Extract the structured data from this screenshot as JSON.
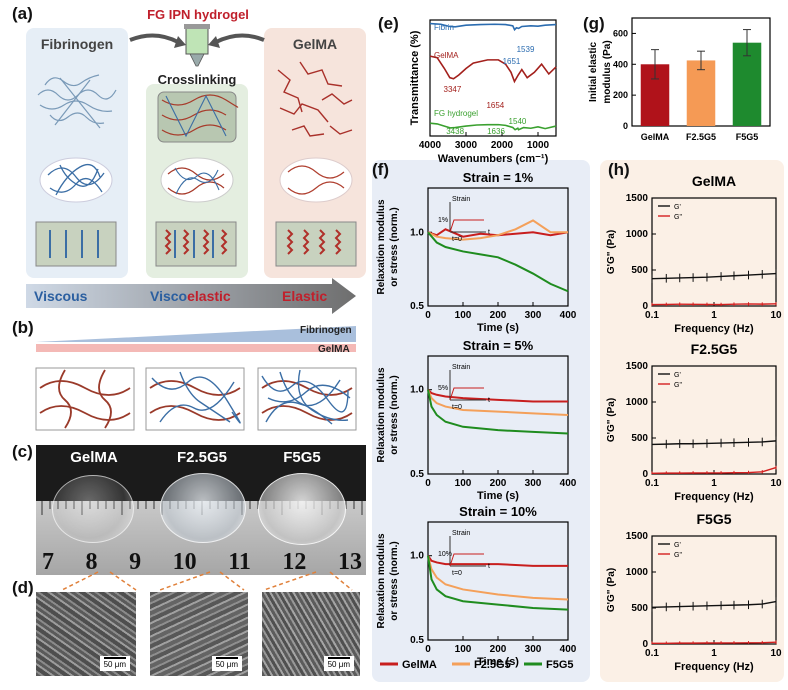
{
  "panels": {
    "a": "(a)",
    "b": "(b)",
    "c": "(c)",
    "d": "(d)",
    "e": "(e)",
    "f": "(f)",
    "g": "(g)",
    "h": "(h)"
  },
  "panel_a": {
    "title": "FG IPN hydrogel",
    "left": "Fibrinogen",
    "right": "GelMA",
    "middle": "Crosslinking",
    "arrow_words": {
      "viscous": "Viscous",
      "visco": "Visco",
      "elastic_part": "elastic",
      "elastic": "Elastic"
    }
  },
  "panel_b": {
    "fibrinogen": "Fibrinogen",
    "gelma": "GelMA"
  },
  "panel_c": {
    "samples": [
      "GelMA",
      "F2.5G5",
      "F5G5"
    ],
    "ruler_numbers": [
      "7",
      "8",
      "9",
      "10",
      "11",
      "12",
      "13"
    ]
  },
  "panel_d": {
    "scale": "50 μm"
  },
  "colors": {
    "gelma": "#c81e1e",
    "f25g5": "#f4a05a",
    "f5g5": "#1f8c1f",
    "fibrin": "#2b6cb0"
  },
  "chart_data": [
    {
      "id": "e",
      "type": "line",
      "xlabel": "Wavenumbers (cm⁻¹)",
      "ylabel": "Transmittance (%)",
      "xlim": [
        4000,
        500
      ],
      "xticks": [
        4000,
        3000,
        2000,
        1000
      ],
      "series": [
        {
          "name": "Fibrin",
          "color": "#2b6cb0",
          "x": [
            4000,
            3700,
            3450,
            3300,
            3000,
            2600,
            2200,
            1900,
            1700,
            1651,
            1600,
            1539,
            1450,
            1200,
            1000,
            800,
            500
          ],
          "y": [
            0.95,
            0.93,
            0.86,
            0.85,
            0.9,
            0.92,
            0.93,
            0.92,
            0.88,
            0.76,
            0.82,
            0.8,
            0.86,
            0.88,
            0.87,
            0.9,
            0.92
          ]
        },
        {
          "name": "GelMA",
          "color": "#a3201c",
          "x": [
            4000,
            3800,
            3600,
            3450,
            3347,
            3200,
            3000,
            2800,
            2400,
            2100,
            1900,
            1750,
            1654,
            1550,
            1450,
            1300,
            1100,
            900,
            700,
            500
          ],
          "y": [
            0.85,
            0.82,
            0.62,
            0.45,
            0.43,
            0.5,
            0.62,
            0.72,
            0.78,
            0.78,
            0.7,
            0.55,
            0.38,
            0.5,
            0.6,
            0.45,
            0.55,
            0.7,
            0.52,
            0.65
          ]
        },
        {
          "name": "FG hydrogel",
          "color": "#3aa02f",
          "x": [
            4000,
            3800,
            3600,
            3438,
            3300,
            3000,
            2700,
            2400,
            2100,
            1900,
            1700,
            1636,
            1560,
            1540,
            1400,
            1200,
            1000,
            800,
            500
          ],
          "y": [
            0.3,
            0.28,
            0.22,
            0.17,
            0.18,
            0.22,
            0.25,
            0.26,
            0.26,
            0.24,
            0.18,
            0.12,
            0.16,
            0.12,
            0.18,
            0.16,
            0.2,
            0.15,
            0.22
          ]
        }
      ],
      "annotations": [
        "1539",
        "1651",
        "3347",
        "1654",
        "3438",
        "1636",
        "1540"
      ]
    },
    {
      "id": "g",
      "type": "bar",
      "ylabel": "Initial elastic modulus (Pa)",
      "ylim": [
        0,
        700
      ],
      "yticks": [
        0,
        200,
        400,
        600
      ],
      "categories": [
        "GelMA",
        "F2.5G5",
        "F5G5"
      ],
      "values": [
        400,
        425,
        540
      ],
      "errors": [
        95,
        60,
        85
      ],
      "colors": [
        "#b0121a",
        "#f59a55",
        "#1e8a2e"
      ]
    },
    {
      "id": "f",
      "type": "line",
      "xlabel": "Time (s)",
      "ylabel": "Relaxation modulus or stress (norm.)",
      "xlim": [
        0,
        400
      ],
      "xticks": [
        0,
        100,
        200,
        300,
        400
      ],
      "legend": [
        "GelMA",
        "F2.5G5",
        "F5G5"
      ],
      "legend_colors": [
        "#c81e1e",
        "#f4a05a",
        "#1f8c1f"
      ],
      "subplots": [
        {
          "title": "Strain = 1%",
          "inset": "1%",
          "ylim": [
            0.5,
            1.3
          ],
          "yticks": [
            0.5,
            1.0
          ],
          "series": [
            {
              "name": "GelMA",
              "x": [
                0,
                25,
                50,
                100,
                150,
                200,
                250,
                300,
                350,
                400
              ],
              "y": [
                1.0,
                0.98,
                1.02,
                0.97,
                0.99,
                0.98,
                0.99,
                1.0,
                0.98,
                1.0
              ]
            },
            {
              "name": "F2.5G5",
              "x": [
                0,
                25,
                50,
                100,
                150,
                200,
                250,
                300,
                350,
                400
              ],
              "y": [
                1.0,
                0.97,
                0.96,
                0.95,
                0.96,
                0.98,
                1.02,
                1.08,
                1.0,
                1.0
              ]
            },
            {
              "name": "F5G5",
              "x": [
                0,
                25,
                50,
                100,
                150,
                200,
                250,
                300,
                350,
                400
              ],
              "y": [
                1.0,
                0.93,
                0.9,
                0.87,
                0.85,
                0.83,
                0.78,
                0.72,
                0.65,
                0.6
              ]
            }
          ]
        },
        {
          "title": "Strain = 5%",
          "inset": "5%",
          "ylim": [
            0.5,
            1.2
          ],
          "yticks": [
            0.5,
            1.0
          ],
          "series": [
            {
              "name": "GelMA",
              "x": [
                0,
                10,
                25,
                50,
                100,
                200,
                300,
                400
              ],
              "y": [
                1.0,
                0.98,
                0.97,
                0.96,
                0.95,
                0.94,
                0.93,
                0.93
              ]
            },
            {
              "name": "F2.5G5",
              "x": [
                0,
                10,
                25,
                50,
                100,
                200,
                300,
                400
              ],
              "y": [
                1.0,
                0.95,
                0.92,
                0.9,
                0.88,
                0.87,
                0.86,
                0.85
              ]
            },
            {
              "name": "F5G5",
              "x": [
                0,
                10,
                25,
                50,
                100,
                200,
                300,
                400
              ],
              "y": [
                1.0,
                0.9,
                0.85,
                0.81,
                0.78,
                0.76,
                0.75,
                0.74
              ]
            }
          ]
        },
        {
          "title": "Strain = 10%",
          "inset": "10%",
          "ylim": [
            0.5,
            1.2
          ],
          "yticks": [
            0.5,
            1.0
          ],
          "series": [
            {
              "name": "GelMA",
              "x": [
                0,
                10,
                25,
                50,
                100,
                200,
                300,
                400
              ],
              "y": [
                1.0,
                0.97,
                0.96,
                0.95,
                0.95,
                0.95,
                0.94,
                0.94
              ]
            },
            {
              "name": "F2.5G5",
              "x": [
                0,
                10,
                25,
                50,
                100,
                200,
                300,
                400
              ],
              "y": [
                1.0,
                0.92,
                0.87,
                0.83,
                0.8,
                0.77,
                0.75,
                0.74
              ]
            },
            {
              "name": "F5G5",
              "x": [
                0,
                10,
                25,
                50,
                100,
                200,
                300,
                400
              ],
              "y": [
                1.0,
                0.86,
                0.8,
                0.76,
                0.73,
                0.71,
                0.69,
                0.68
              ]
            }
          ]
        }
      ],
      "inset_labels": {
        "strain": "Strain",
        "t0": "t=0",
        "t": "t"
      }
    },
    {
      "id": "h",
      "type": "line",
      "xlabel": "Frequency (Hz)",
      "ylabel": "G'G\" (Pa)",
      "xscale": "log",
      "xlim": [
        0.1,
        10
      ],
      "xticks": [
        "0.1",
        "1",
        "10"
      ],
      "yticks": [
        0,
        500,
        1000,
        1500
      ],
      "ylim": [
        0,
        1500
      ],
      "legend_entries": [
        "G'",
        "G\""
      ],
      "subplots": [
        {
          "title": "GelMA",
          "g_prime": [
            380,
            385,
            390,
            395,
            400,
            410,
            420,
            430,
            440,
            450
          ],
          "g_double": [
            20,
            22,
            25,
            24,
            22,
            20,
            25,
            28,
            26,
            30
          ]
        },
        {
          "title": "F2.5G5",
          "g_prime": [
            410,
            415,
            420,
            420,
            425,
            430,
            435,
            440,
            445,
            460
          ],
          "g_double": [
            10,
            12,
            12,
            14,
            15,
            15,
            18,
            20,
            30,
            90
          ]
        },
        {
          "title": "F5G5",
          "g_prime": [
            510,
            515,
            520,
            525,
            530,
            535,
            540,
            545,
            555,
            590
          ],
          "g_double": [
            10,
            10,
            12,
            12,
            14,
            14,
            15,
            16,
            18,
            25
          ]
        }
      ],
      "frequencies": [
        0.1,
        0.17,
        0.28,
        0.46,
        0.77,
        1.3,
        2.1,
        3.6,
        6.0,
        10
      ]
    }
  ]
}
